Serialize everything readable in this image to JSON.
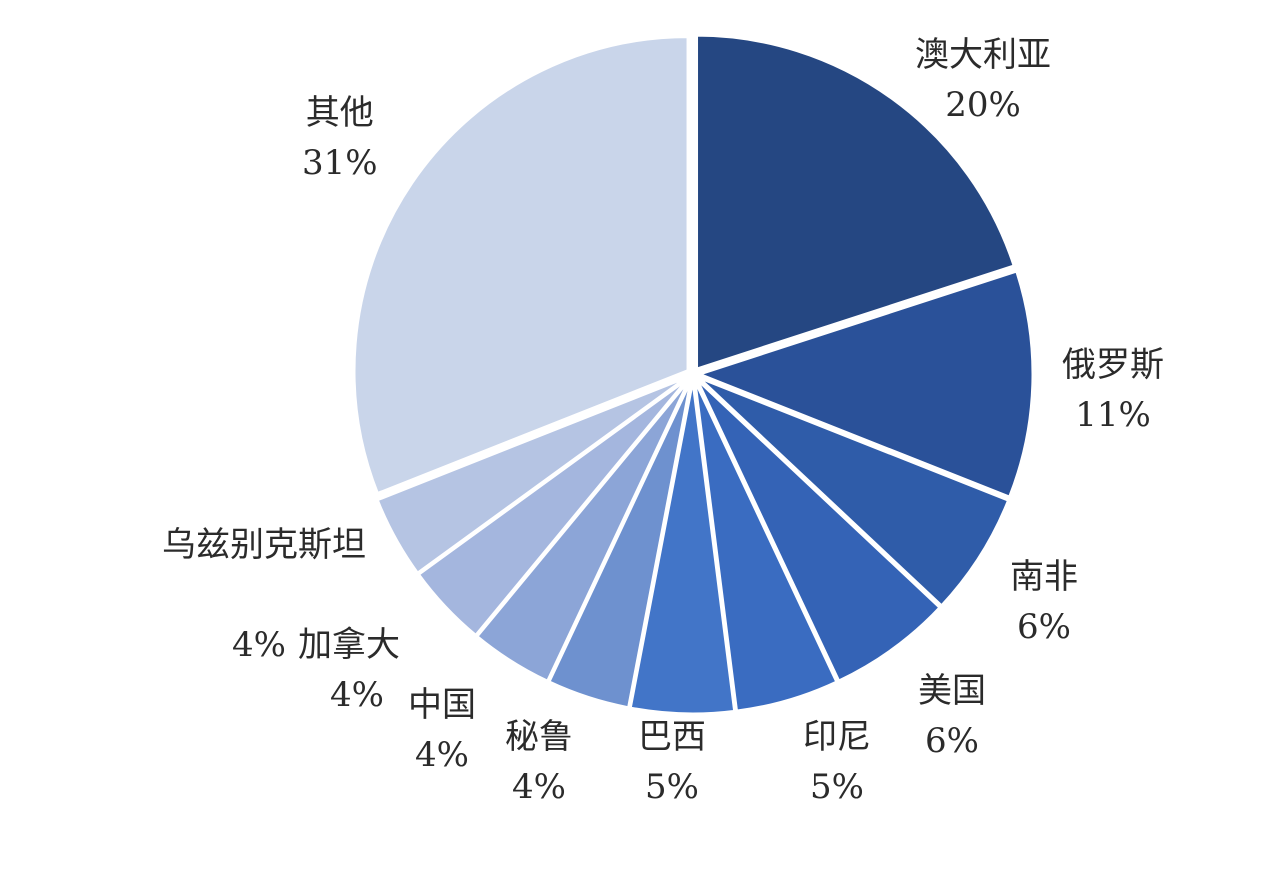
{
  "chart_data": {
    "type": "pie",
    "slices": [
      {
        "name": "澳大利亚",
        "value": 20,
        "label": "20%",
        "color": "#254782"
      },
      {
        "name": "俄罗斯",
        "value": 11,
        "label": "11%",
        "color": "#2a5199"
      },
      {
        "name": "南非",
        "value": 6,
        "label": "6%",
        "color": "#2f5ca9"
      },
      {
        "name": "美国",
        "value": 6,
        "label": "6%",
        "color": "#3463b6"
      },
      {
        "name": "印尼",
        "value": 5,
        "label": "5%",
        "color": "#3a6cc1"
      },
      {
        "name": "巴西",
        "value": 5,
        "label": "5%",
        "color": "#4275c8"
      },
      {
        "name": "秘鲁",
        "value": 4,
        "label": "4%",
        "color": "#6e91cf"
      },
      {
        "name": "中国",
        "value": 4,
        "label": "4%",
        "color": "#8ca5d7"
      },
      {
        "name": "加拿大",
        "value": 4,
        "label": "4%",
        "color": "#a4b6de"
      },
      {
        "name": "乌兹别克斯坦",
        "value": 4,
        "label": "4%",
        "color": "#b5c4e3"
      },
      {
        "name": "其他",
        "value": 31,
        "label": "31%",
        "color": "#c9d5ea"
      }
    ]
  }
}
